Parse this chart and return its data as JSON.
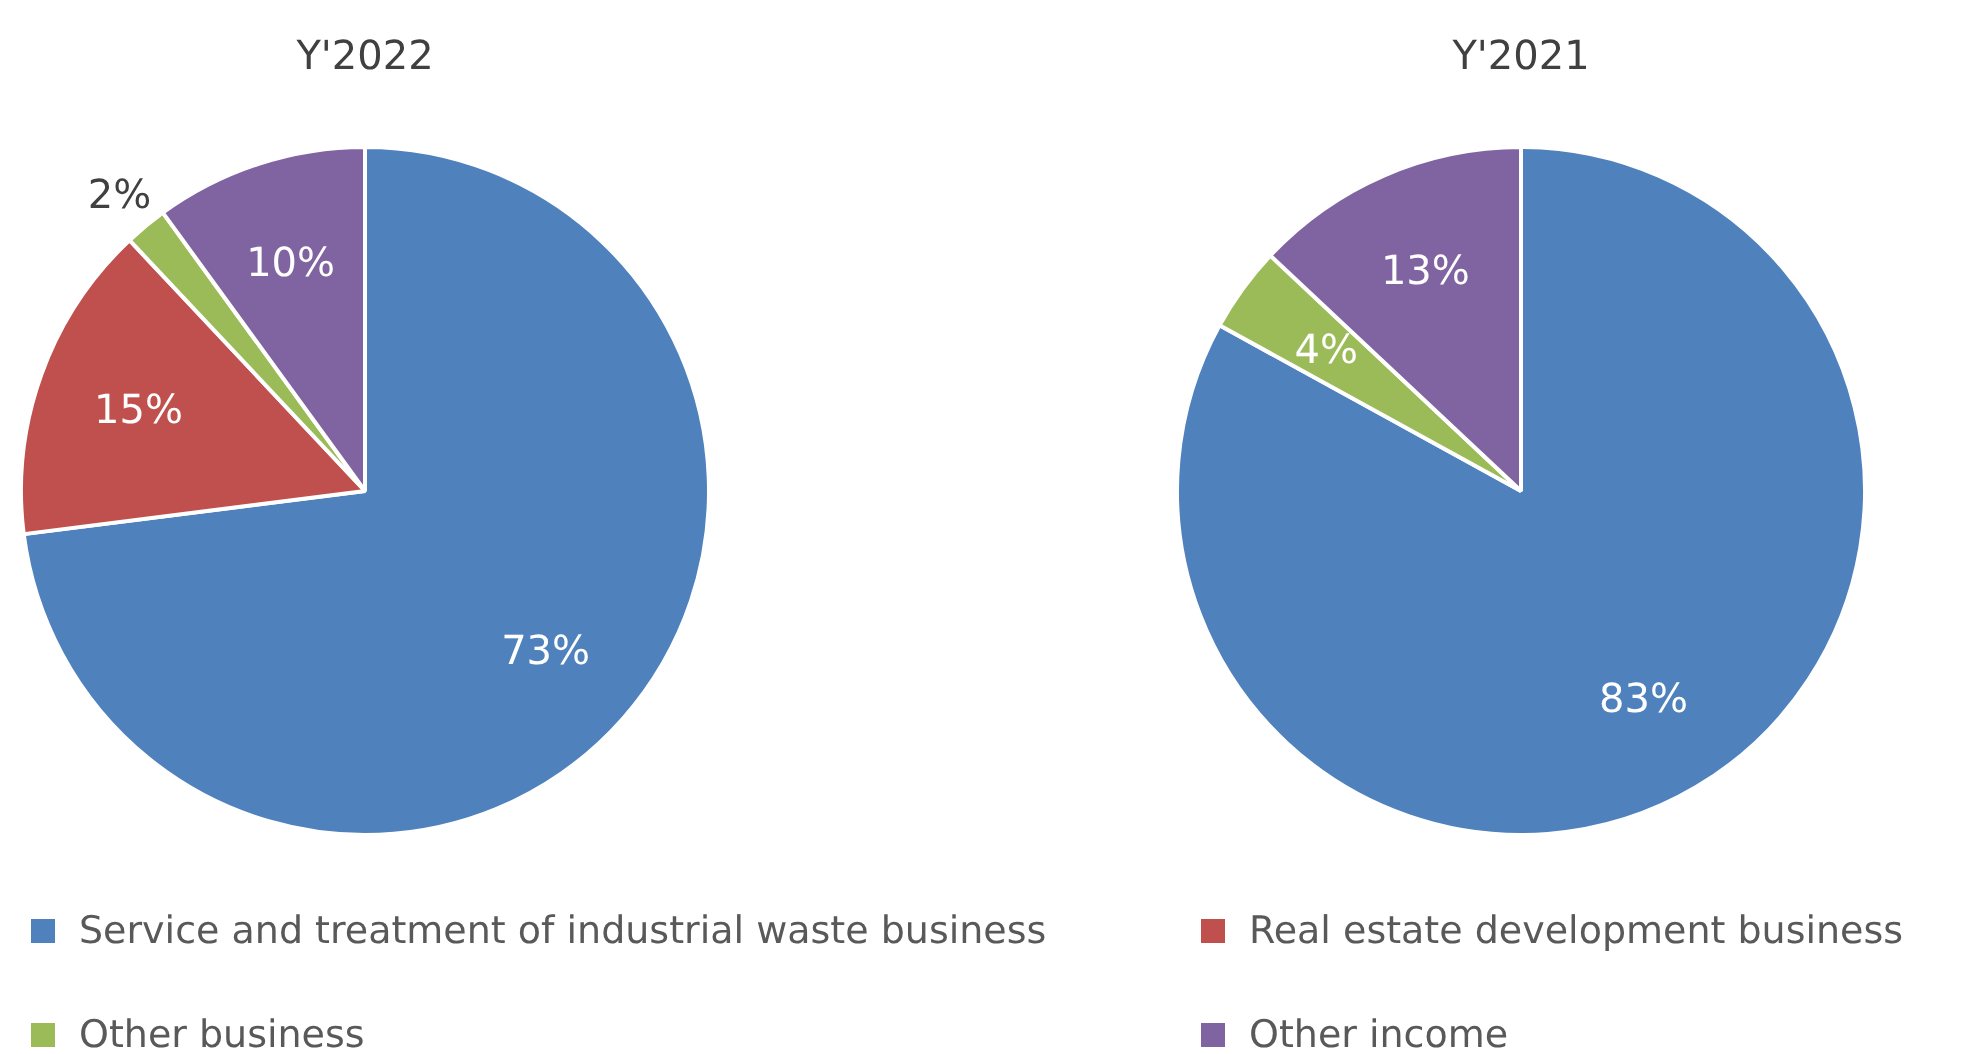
{
  "chart_data": [
    {
      "type": "pie",
      "title": "Y'2022",
      "categories": [
        "Service and treatment of industrial waste business",
        "Real estate development business",
        "Other business",
        "Other income"
      ],
      "values": [
        73,
        15,
        2,
        10
      ],
      "colors": [
        "#4f81bd",
        "#c0504d",
        "#9bbb59",
        "#8064a2"
      ],
      "value_labels": [
        "73%",
        "15%",
        "2%",
        "10%"
      ],
      "legend": "bottom"
    },
    {
      "type": "pie",
      "title": "Y'2021",
      "categories": [
        null,
        null,
        null
      ],
      "values": [
        83,
        4,
        13
      ],
      "colors": [
        "#4f81bd",
        "#9bbb59",
        "#8064a2"
      ],
      "value_labels": [
        "83%",
        "4%",
        "13%"
      ]
    }
  ]
}
